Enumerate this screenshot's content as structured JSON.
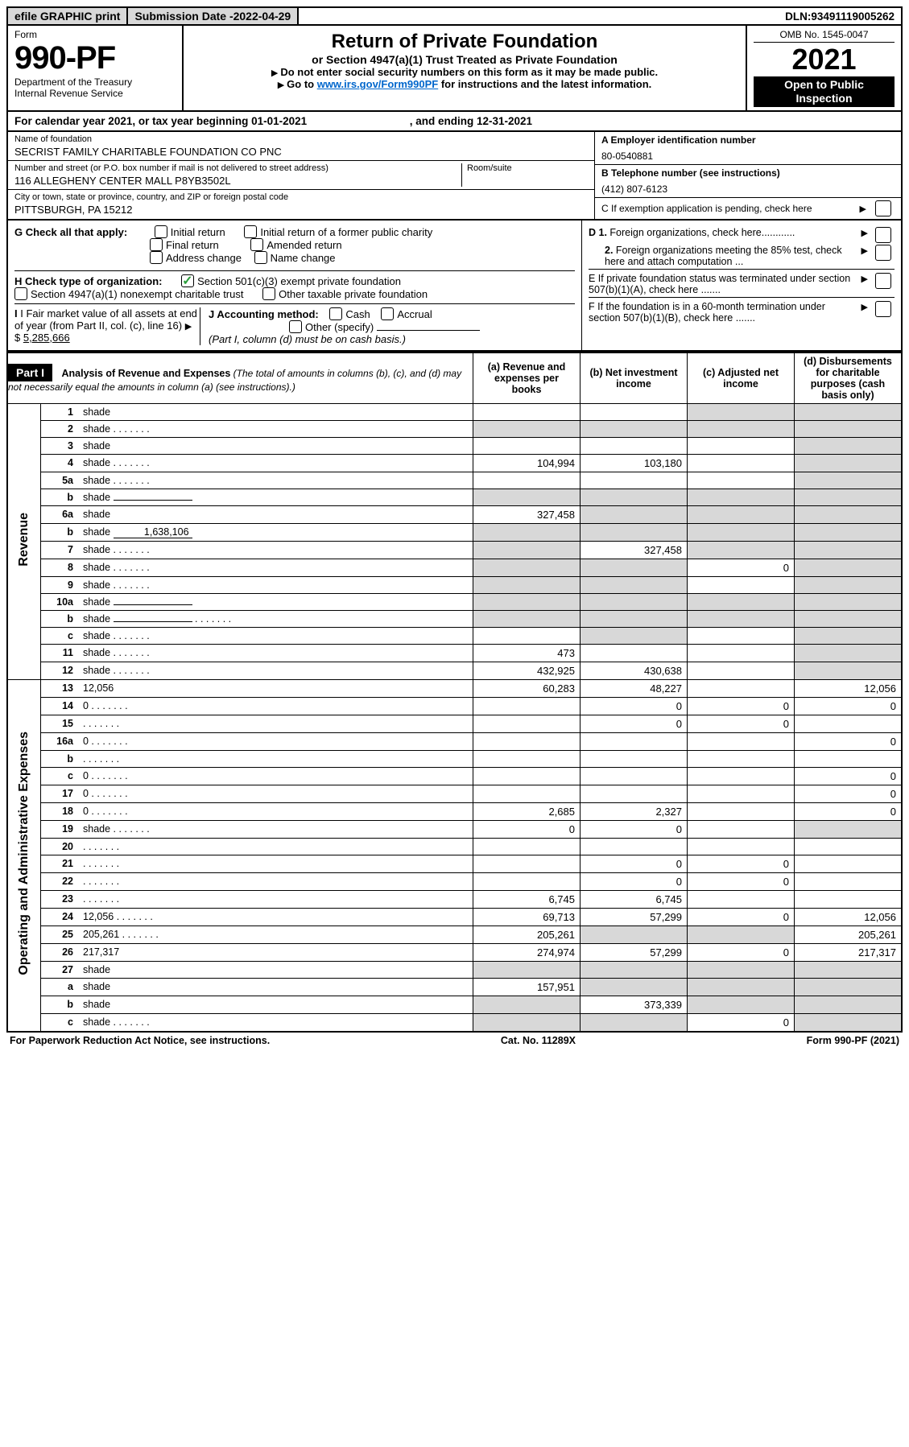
{
  "topbar": {
    "efile": "efile GRAPHIC print",
    "sub_label": "Submission Date - ",
    "sub_date": "2022-04-29",
    "dln_label": "DLN: ",
    "dln": "93491119005262"
  },
  "hdr": {
    "form_word": "Form",
    "form_num": "990-PF",
    "dept": "Department of the Treasury",
    "irs": "Internal Revenue Service",
    "title": "Return of Private Foundation",
    "subtitle": "or Section 4947(a)(1) Trust Treated as Private Foundation",
    "note1": "Do not enter social security numbers on this form as it may be made public.",
    "note2_a": "Go to ",
    "note2_link": "www.irs.gov/Form990PF",
    "note2_b": " for instructions and the latest information.",
    "omb": "OMB No. 1545-0047",
    "year": "2021",
    "inspect1": "Open to Public",
    "inspect2": "Inspection"
  },
  "cal": {
    "line_a": "For calendar year 2021, or tax year beginning ",
    "begin": "01-01-2021",
    "line_b": " , and ending ",
    "end": "12-31-2021"
  },
  "id": {
    "name_lbl": "Name of foundation",
    "name": "SECRIST FAMILY CHARITABLE FOUNDATION CO PNC",
    "addr_lbl": "Number and street (or P.O. box number if mail is not delivered to street address)",
    "addr": "116 ALLEGHENY CENTER MALL P8YB3502L",
    "room_lbl": "Room/suite",
    "city_lbl": "City or town, state or province, country, and ZIP or foreign postal code",
    "city": "PITTSBURGH, PA  15212",
    "a_lbl": "A Employer identification number",
    "a_val": "80-0540881",
    "b_lbl": "B Telephone number (see instructions)",
    "b_val": "(412) 807-6123",
    "c_lbl": "C If exemption application is pending, check here"
  },
  "checks": {
    "g_lbl": "G Check all that apply:",
    "g_items": [
      "Initial return",
      "Initial return of a former public charity",
      "Final return",
      "Amended return",
      "Address change",
      "Name change"
    ],
    "h_lbl": "H Check type of organization:",
    "h1": "Section 501(c)(3) exempt private foundation",
    "h2": "Section 4947(a)(1) nonexempt charitable trust",
    "h3": "Other taxable private foundation",
    "i_lbl": "I Fair market value of all assets at end of year (from Part II, col. (c), line 16)",
    "i_val": "5,285,666",
    "j_lbl": "J Accounting method:",
    "j_cash": "Cash",
    "j_acc": "Accrual",
    "j_other": "Other (specify)",
    "j_note": "(Part I, column (d) must be on cash basis.)",
    "d1": "D 1. Foreign organizations, check here............",
    "d2": "2. Foreign organizations meeting the 85% test, check here and attach computation ...",
    "e": "E  If private foundation status was terminated under section 507(b)(1)(A), check here .......",
    "f": "F  If the foundation is in a 60-month termination under section 507(b)(1)(B), check here ......."
  },
  "part1": {
    "label": "Part I",
    "title": "Analysis of Revenue and Expenses",
    "note": " (The total of amounts in columns (b), (c), and (d) may not necessarily equal the amounts in column (a) (see instructions).)",
    "col_a": "(a)   Revenue and expenses per books",
    "col_b": "(b)   Net investment income",
    "col_c": "(c)   Adjusted net income",
    "col_d": "(d)   Disbursements for charitable purposes (cash basis only)"
  },
  "side": {
    "rev": "Revenue",
    "exp": "Operating and Administrative Expenses"
  },
  "rows": [
    {
      "n": "1",
      "d": "shade",
      "a": "",
      "b": "",
      "c": "shade"
    },
    {
      "n": "2",
      "d": "shade",
      "dots": 1,
      "a": "shade",
      "b": "shade",
      "c": "shade"
    },
    {
      "n": "3",
      "d": "shade",
      "a": "",
      "b": "",
      "c": ""
    },
    {
      "n": "4",
      "d": "shade",
      "dots": 1,
      "a": "104,994",
      "b": "103,180",
      "c": ""
    },
    {
      "n": "5a",
      "d": "shade",
      "dots": 1,
      "a": "",
      "b": "",
      "c": ""
    },
    {
      "n": "b",
      "d": "shade",
      "inner": "",
      "a": "shade",
      "b": "shade",
      "c": "shade"
    },
    {
      "n": "6a",
      "d": "shade",
      "a": "327,458",
      "b": "shade",
      "c": "shade"
    },
    {
      "n": "b",
      "d": "shade",
      "inner": "1,638,106",
      "a": "shade",
      "b": "shade",
      "c": "shade"
    },
    {
      "n": "7",
      "d": "shade",
      "dots": 1,
      "a": "shade",
      "b": "327,458",
      "c": "shade"
    },
    {
      "n": "8",
      "d": "shade",
      "dots": 1,
      "a": "shade",
      "b": "shade",
      "c": "0"
    },
    {
      "n": "9",
      "d": "shade",
      "dots": 1,
      "a": "shade",
      "b": "shade",
      "c": ""
    },
    {
      "n": "10a",
      "d": "shade",
      "inner": "",
      "a": "shade",
      "b": "shade",
      "c": "shade"
    },
    {
      "n": "b",
      "d": "shade",
      "dots": 1,
      "inner": "",
      "a": "shade",
      "b": "shade",
      "c": "shade"
    },
    {
      "n": "c",
      "d": "shade",
      "dots": 1,
      "a": "",
      "b": "shade",
      "c": ""
    },
    {
      "n": "11",
      "d": "shade",
      "dots": 1,
      "a": "473",
      "b": "",
      "c": ""
    },
    {
      "n": "12",
      "d": "shade",
      "dots": 1,
      "a": "432,925",
      "b": "430,638",
      "c": ""
    }
  ],
  "exprows": [
    {
      "n": "13",
      "d": "12,056",
      "a": "60,283",
      "b": "48,227",
      "c": ""
    },
    {
      "n": "14",
      "d": "0",
      "dots": 1,
      "a": "",
      "b": "0",
      "c": "0"
    },
    {
      "n": "15",
      "d": "",
      "dots": 1,
      "a": "",
      "b": "0",
      "c": "0"
    },
    {
      "n": "16a",
      "d": "0",
      "dots": 1,
      "a": "",
      "b": "",
      "c": ""
    },
    {
      "n": "b",
      "d": "",
      "dots": 1,
      "a": "",
      "b": "",
      "c": ""
    },
    {
      "n": "c",
      "d": "0",
      "dots": 1,
      "a": "",
      "b": "",
      "c": ""
    },
    {
      "n": "17",
      "d": "0",
      "dots": 1,
      "a": "",
      "b": "",
      "c": ""
    },
    {
      "n": "18",
      "d": "0",
      "dots": 1,
      "a": "2,685",
      "b": "2,327",
      "c": ""
    },
    {
      "n": "19",
      "d": "shade",
      "dots": 1,
      "a": "0",
      "b": "0",
      "c": ""
    },
    {
      "n": "20",
      "d": "",
      "dots": 1,
      "a": "",
      "b": "",
      "c": ""
    },
    {
      "n": "21",
      "d": "",
      "dots": 1,
      "a": "",
      "b": "0",
      "c": "0"
    },
    {
      "n": "22",
      "d": "",
      "dots": 1,
      "a": "",
      "b": "0",
      "c": "0"
    },
    {
      "n": "23",
      "d": "",
      "dots": 1,
      "a": "6,745",
      "b": "6,745",
      "c": ""
    },
    {
      "n": "24",
      "d": "12,056",
      "dots": 1,
      "a": "69,713",
      "b": "57,299",
      "c": "0"
    },
    {
      "n": "25",
      "d": "205,261",
      "dots": 1,
      "a": "205,261",
      "b": "shade",
      "c": "shade"
    },
    {
      "n": "26",
      "d": "217,317",
      "a": "274,974",
      "b": "57,299",
      "c": "0"
    },
    {
      "n": "27",
      "d": "shade",
      "a": "shade",
      "b": "shade",
      "c": "shade"
    },
    {
      "n": "a",
      "d": "shade",
      "a": "157,951",
      "b": "shade",
      "c": "shade"
    },
    {
      "n": "b",
      "d": "shade",
      "a": "shade",
      "b": "373,339",
      "c": "shade"
    },
    {
      "n": "c",
      "d": "shade",
      "dots": 1,
      "a": "shade",
      "b": "shade",
      "c": "0"
    }
  ],
  "footer": {
    "left": "For Paperwork Reduction Act Notice, see instructions.",
    "mid": "Cat. No. 11289X",
    "right": "Form 990-PF (2021)"
  }
}
